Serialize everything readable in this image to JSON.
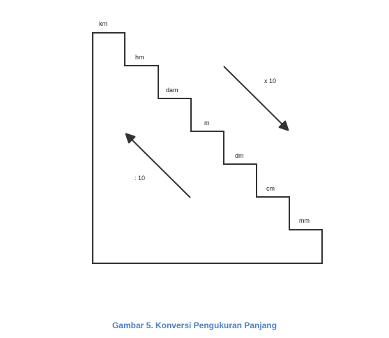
{
  "units": [
    "km",
    "hm",
    "dam",
    "m",
    "dm",
    "cm",
    "mm"
  ],
  "multiply_label": "x 10",
  "divide_label": ": 10",
  "caption": "Gambar 5. Konversi Pengukuran Panjang",
  "colors": {
    "line": "#333333",
    "caption": "#4f81bd"
  }
}
